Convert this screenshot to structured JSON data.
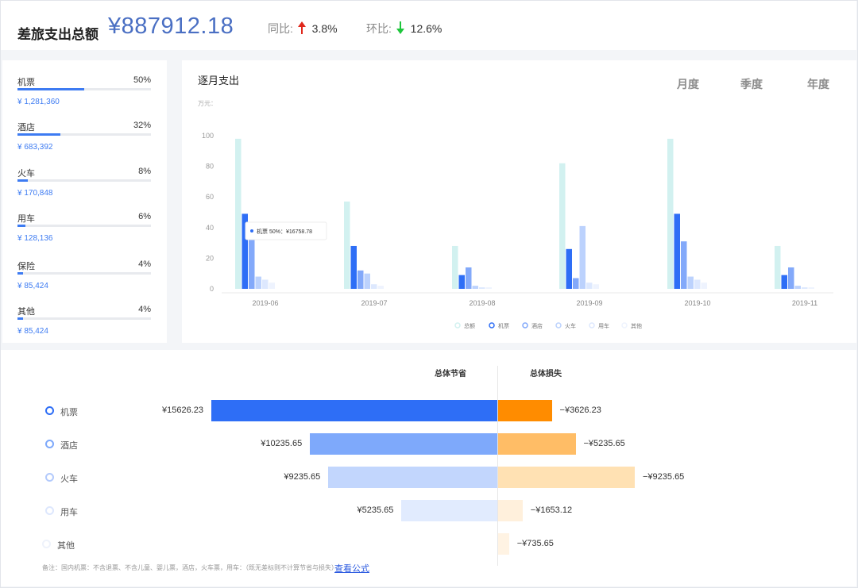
{
  "header": {
    "title": "差旅支出总额",
    "amount": "¥887912.18",
    "yoy_label": "同比:",
    "yoy_value": "3.8%",
    "mom_label": "环比:",
    "mom_value": "12.6%"
  },
  "categories": [
    {
      "name": "机票",
      "pct": "50%",
      "pct_value": 0.5,
      "amount": "¥ 1,281,360"
    },
    {
      "name": "酒店",
      "pct": "32%",
      "pct_value": 0.32,
      "amount": "¥ 683,392"
    },
    {
      "name": "火车",
      "pct": "8%",
      "pct_value": 0.08,
      "amount": "¥ 170,848"
    },
    {
      "name": "用车",
      "pct": "6%",
      "pct_value": 0.06,
      "amount": "¥ 128,136"
    },
    {
      "name": "保险",
      "pct": "4%",
      "pct_value": 0.04,
      "amount": "¥ 85,424"
    },
    {
      "name": "其他",
      "pct": "4%",
      "pct_value": 0.04,
      "amount": "¥ 85,424"
    }
  ],
  "chart_panel": {
    "title": "逐月支出",
    "periods": [
      "月度",
      "季度",
      "年度"
    ],
    "tooltip": "机票 50%：¥16758.78"
  },
  "chart_data": {
    "type": "bar",
    "ylabel": "万元",
    "ylim": [
      0,
      100
    ],
    "yticks": [
      0,
      20,
      40,
      60,
      80,
      100
    ],
    "categories": [
      "2019-06",
      "2019-07",
      "2019-08",
      "2019-09",
      "2019-10",
      "2019-11"
    ],
    "series": [
      {
        "name": "总额",
        "color": "#d2f1f0",
        "values": [
          98,
          57,
          28,
          82,
          98,
          28
        ]
      },
      {
        "name": "机票",
        "color": "#2e6ef6",
        "values": [
          49,
          28,
          9,
          26,
          49,
          9
        ]
      },
      {
        "name": "酒店",
        "color": "#83a9fa",
        "values": [
          32,
          12,
          14,
          7,
          31,
          14
        ]
      },
      {
        "name": "火车",
        "color": "#bcd2fd",
        "values": [
          8,
          10,
          2,
          41,
          8,
          2
        ]
      },
      {
        "name": "用车",
        "color": "#dde8fe",
        "values": [
          6,
          3,
          1,
          4,
          6,
          1
        ]
      },
      {
        "name": "其他",
        "color": "#eef3fe",
        "values": [
          4,
          2,
          1,
          3,
          4,
          1
        ]
      }
    ],
    "grid": false,
    "legend": "bottom-center"
  },
  "savings": {
    "col_save": "总体节省",
    "col_loss": "总体损失",
    "rows": [
      {
        "name": "机票",
        "save": "¥15626.23",
        "save_value": 15626.23,
        "loss": "−¥3626.23",
        "loss_value": 3626.23,
        "save_color": "#2e6ef6",
        "loss_color": "#ff8c00",
        "dot_color": "#2e6ef6"
      },
      {
        "name": "酒店",
        "save": "¥10235.65",
        "save_value": 10235.65,
        "loss": "−¥5235.65",
        "loss_value": 5235.65,
        "save_color": "#7ea9fb",
        "loss_color": "#ffbd66",
        "dot_color": "#7ea9fb"
      },
      {
        "name": "火车",
        "save": "¥9235.65",
        "save_value": 9235.65,
        "loss": "−¥9235.65",
        "loss_value": 9235.65,
        "save_color": "#c2d6fd",
        "loss_color": "#ffe1b3",
        "dot_color": "#b3cafc"
      },
      {
        "name": "用车",
        "save": "¥5235.65",
        "save_value": 5235.65,
        "loss": "−¥1653.12",
        "loss_value": 1653.12,
        "save_color": "#e1ebfe",
        "loss_color": "#fff0dc",
        "dot_color": "#dde7fd"
      },
      {
        "name": "其他",
        "save": "",
        "save_value": 0,
        "loss": "−¥735.65",
        "loss_value": 735.65,
        "save_color": "#eef3fe",
        "loss_color": "#fff3e3",
        "dot_color": "#eef2fb"
      }
    ],
    "note": "备注：国内机票：不含退票、不含儿童、婴儿票，酒店，火车票，用车：（既无差标则不计算节省与损失）",
    "link": "查看公式"
  }
}
